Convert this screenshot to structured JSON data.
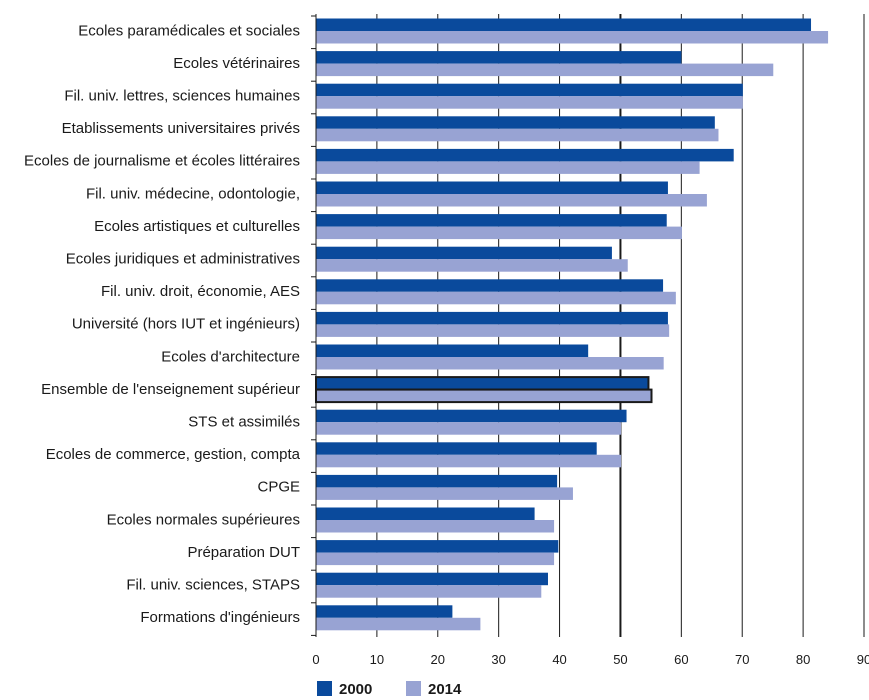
{
  "chart_data": {
    "type": "bar",
    "orientation": "horizontal",
    "title": "",
    "xlabel": "",
    "ylabel": "",
    "xlim": [
      0,
      90
    ],
    "xticks": [
      0,
      10,
      20,
      30,
      40,
      50,
      60,
      70,
      80,
      90
    ],
    "grid": "vertical",
    "reference_line": 50,
    "legend_position": "bottom-left",
    "categories": [
      "Ecoles paramédicales et sociales",
      "Ecoles vétérinaires",
      "Fil. univ. lettres, sciences humaines",
      "Etablissements universitaires privés",
      "Ecoles de journalisme et écoles littéraires",
      "Fil. univ. médecine, odontologie,",
      "Ecoles artistiques et culturelles",
      "Ecoles juridiques et administratives",
      "Fil. univ. droit, économie, AES",
      "Université (hors IUT et ingénieurs)",
      "Ecoles d'architecture",
      "Ensemble de l'enseignement supérieur",
      "STS et assimilés",
      "Ecoles de commerce, gestion, compta",
      "CPGE",
      "Ecoles normales supérieures",
      "Préparation DUT",
      "Fil. univ. sciences, STAPS",
      "Formations d'ingénieurs"
    ],
    "highlighted_category": "Ensemble de l'enseignement supérieur",
    "series": [
      {
        "name": "2000",
        "color": "#0a4a9c",
        "values": [
          81.3,
          60.0,
          70.1,
          65.5,
          68.6,
          57.8,
          57.6,
          48.6,
          57.0,
          57.8,
          44.7,
          54.6,
          51.0,
          46.1,
          39.6,
          35.9,
          39.8,
          38.1,
          22.4
        ]
      },
      {
        "name": "2014",
        "color": "#98a3d3",
        "values": [
          84.1,
          75.1,
          70.1,
          66.1,
          63.0,
          64.2,
          60.1,
          51.2,
          59.1,
          58.0,
          57.1,
          55.1,
          50.1,
          50.1,
          42.2,
          39.1,
          39.1,
          37.0,
          27.0
        ]
      }
    ]
  }
}
